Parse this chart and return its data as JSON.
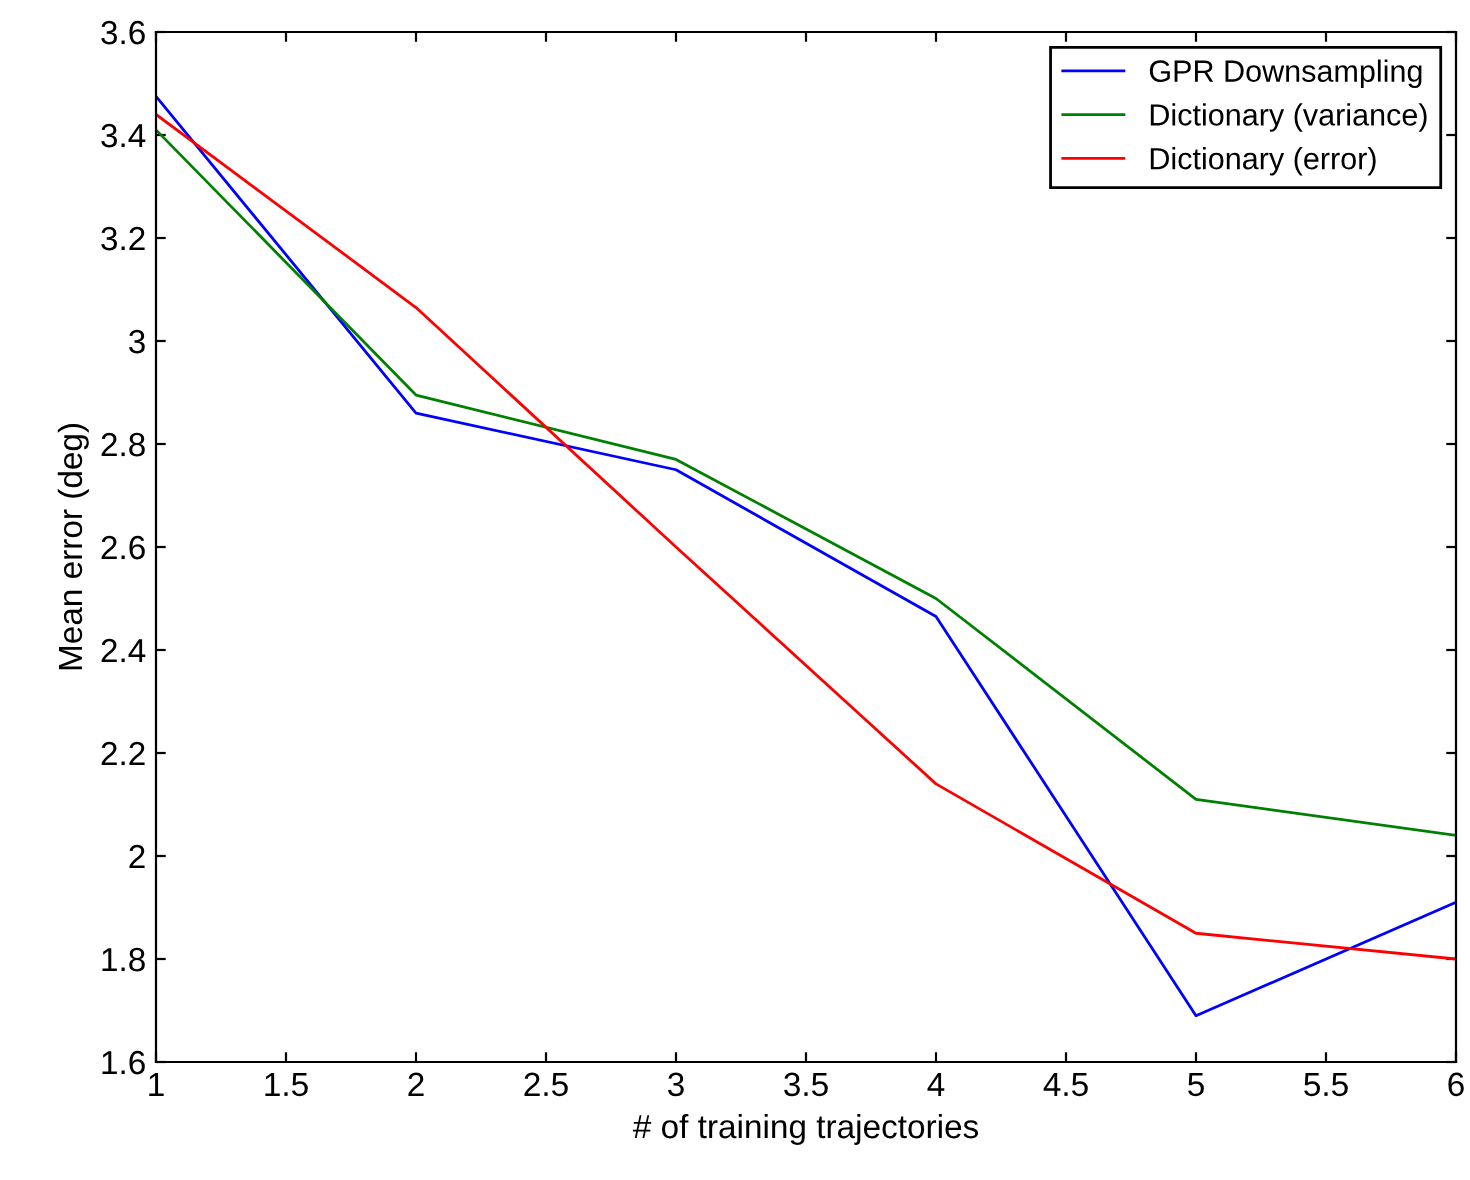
{
  "chart_data": {
    "type": "line",
    "xlabel": "# of training trajectories",
    "ylabel": "Mean error (deg)",
    "x": [
      1,
      2,
      3,
      4,
      5,
      6
    ],
    "series": [
      {
        "name": "GPR Downsampling",
        "color": "#0000ff",
        "values": [
          3.475,
          2.86,
          2.75,
          2.465,
          1.69,
          1.91
        ]
      },
      {
        "name": "Dictionary (variance)",
        "color": "#008000",
        "values": [
          3.41,
          2.895,
          2.77,
          2.5,
          2.11,
          2.04
        ]
      },
      {
        "name": "Dictionary (error)",
        "color": "#ff0000",
        "values": [
          3.44,
          3.065,
          2.6,
          2.14,
          1.85,
          1.8
        ]
      }
    ],
    "xlim": [
      1,
      6
    ],
    "xticks": [
      1,
      1.5,
      2,
      2.5,
      3,
      3.5,
      4,
      4.5,
      5,
      5.5,
      6
    ],
    "ylim": [
      1.6,
      3.6
    ],
    "yticks": [
      1.6,
      1.8,
      2,
      2.2,
      2.4,
      2.6,
      2.8,
      3,
      3.2,
      3.4,
      3.6
    ],
    "grid": false,
    "legend": "top right",
    "marker": "none",
    "line_style": "solid"
  }
}
